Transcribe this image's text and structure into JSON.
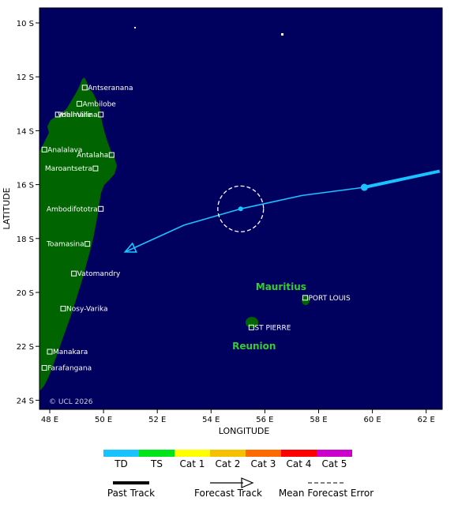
{
  "map": {
    "xlabel": "LONGITUDE",
    "ylabel": "LATITUDE",
    "copyright": "© UCL 2026",
    "colors": {
      "ocean": "#00005f",
      "land": "#006400",
      "frame": "#000000",
      "track": "#19c3ff",
      "error_circle": "#ffffff",
      "region_text": "#33cc33"
    },
    "lon_ticks": [
      "48 E",
      "50 E",
      "52 E",
      "54 E",
      "56 E",
      "58 E",
      "60 E",
      "62 E"
    ],
    "lat_ticks": [
      "10 S",
      "12 S",
      "14 S",
      "16 S",
      "18 S",
      "20 S",
      "22 S",
      "24 S"
    ],
    "places": [
      {
        "name": "Antseranana",
        "lon": 49.3,
        "lat": -12.4
      },
      {
        "name": "Ambilobe",
        "lon": 49.1,
        "lat": -13.0
      },
      {
        "name": "Hell-Ville",
        "lon": 48.3,
        "lat": -13.4
      },
      {
        "name": "Vohimarina",
        "lon": 49.9,
        "lat": -13.4
      },
      {
        "name": "Analalava",
        "lon": 47.8,
        "lat": -14.7
      },
      {
        "name": "Antalaha",
        "lon": 50.3,
        "lat": -14.9
      },
      {
        "name": "Maroantsetra",
        "lon": 49.7,
        "lat": -15.4
      },
      {
        "name": "Ambodifototra",
        "lon": 49.9,
        "lat": -16.9
      },
      {
        "name": "Toamasina",
        "lon": 49.4,
        "lat": -18.2
      },
      {
        "name": "Vatomandry",
        "lon": 48.9,
        "lat": -19.3
      },
      {
        "name": "Nosy-Varika",
        "lon": 48.5,
        "lat": -20.6
      },
      {
        "name": "Manakara",
        "lon": 48.0,
        "lat": -22.2
      },
      {
        "name": "Farafangana",
        "lon": 47.8,
        "lat": -22.8
      },
      {
        "name": "PORT LOUIS",
        "lon": 57.5,
        "lat": -20.2
      },
      {
        "name": "ST PIERRE",
        "lon": 55.5,
        "lat": -21.3
      }
    ],
    "regions": [
      {
        "name": "Mauritius",
        "lon": 56.6,
        "lat": -19.8
      },
      {
        "name": "Reunion",
        "lon": 55.6,
        "lat": -22.0
      }
    ],
    "past_track": [
      {
        "lon": 62.5,
        "lat": -15.5
      },
      {
        "lon": 59.7,
        "lat": -16.1
      }
    ],
    "forecast_track": [
      {
        "lon": 59.7,
        "lat": -16.1
      },
      {
        "lon": 57.4,
        "lat": -16.4
      },
      {
        "lon": 55.1,
        "lat": -16.9
      },
      {
        "lon": 53.0,
        "lat": -17.5
      },
      {
        "lon": 50.8,
        "lat": -18.5
      }
    ],
    "current_position": {
      "lon": 59.7,
      "lat": -16.1
    },
    "forecast_point": {
      "lon": 55.1,
      "lat": -16.9
    },
    "error_circle_radius_deg": 0.85
  },
  "legend": {
    "categories": [
      {
        "label": "TD",
        "color": "#19c3ff"
      },
      {
        "label": "TS",
        "color": "#00e51a"
      },
      {
        "label": "Cat 1",
        "color": "#ffff00"
      },
      {
        "label": "Cat 2",
        "color": "#f5c000"
      },
      {
        "label": "Cat 3",
        "color": "#ff6a00"
      },
      {
        "label": "Cat 4",
        "color": "#ff0000"
      },
      {
        "label": "Cat 5",
        "color": "#cc00cc"
      }
    ],
    "past_track_label": "Past Track",
    "forecast_track_label": "Forecast Track",
    "error_label": "Mean Forecast Error"
  }
}
